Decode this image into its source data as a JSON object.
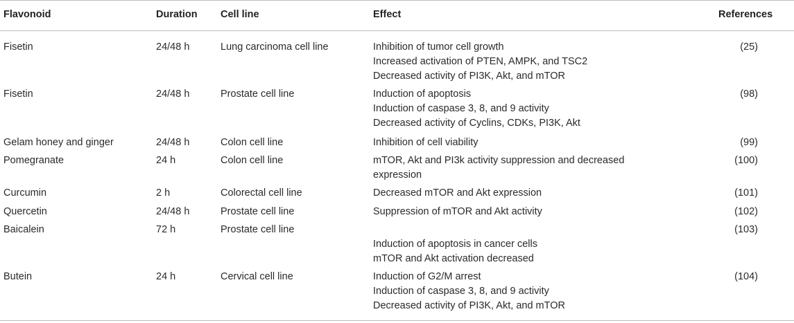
{
  "headers": {
    "flavonoid": "Flavonoid",
    "duration": "Duration",
    "cell_line": "Cell line",
    "effect": "Effect",
    "references": "References"
  },
  "rows": [
    {
      "flavonoid": "Fisetin",
      "duration": "24/48 h",
      "cell_line": "Lung carcinoma cell line",
      "effect": [
        "Inhibition of tumor cell growth",
        "Increased activation of PTEN, AMPK, and TSC2",
        "Decreased activity of PI3K, Akt, and mTOR"
      ],
      "reference": "(25)"
    },
    {
      "flavonoid": "Fisetin",
      "duration": "24/48 h",
      "cell_line": "Prostate cell line",
      "effect": [
        "Induction of apoptosis",
        "Induction of caspase 3, 8, and 9 activity",
        "Decreased activity of Cyclins, CDKs, PI3K, Akt"
      ],
      "reference": "(98)"
    },
    {
      "flavonoid": "Gelam honey and ginger",
      "duration": "24/48 h",
      "cell_line": "Colon cell line",
      "effect": [
        "Inhibition of cell viability"
      ],
      "reference": "(99)"
    },
    {
      "flavonoid": "Pomegranate",
      "duration": "24 h",
      "cell_line": "Colon cell line",
      "effect": [
        "mTOR, Akt and PI3k activity suppression and decreased",
        "expression"
      ],
      "reference": "(100)"
    },
    {
      "flavonoid": "Curcumin",
      "duration": "2 h",
      "cell_line": "Colorectal cell line",
      "effect": [
        "Decreased mTOR and Akt expression"
      ],
      "reference": "(101)"
    },
    {
      "flavonoid": "Quercetin",
      "duration": "24/48 h",
      "cell_line": "Prostate cell line",
      "effect": [
        "Suppression of mTOR and Akt activity"
      ],
      "reference": "(102)"
    },
    {
      "flavonoid": "Baicalein",
      "duration": "72 h",
      "cell_line": "Prostate cell line",
      "effect": [
        "",
        "Induction of apoptosis in cancer cells",
        "mTOR and Akt activation decreased"
      ],
      "reference": "(103)"
    },
    {
      "flavonoid": "Butein",
      "duration": "24 h",
      "cell_line": "Cervical cell line",
      "effect": [
        "Induction of G2/M arrest",
        "Induction of caspase 3, 8, and 9 activity",
        "Decreased activity of PI3K, Akt, and mTOR"
      ],
      "reference": "(104)"
    }
  ]
}
